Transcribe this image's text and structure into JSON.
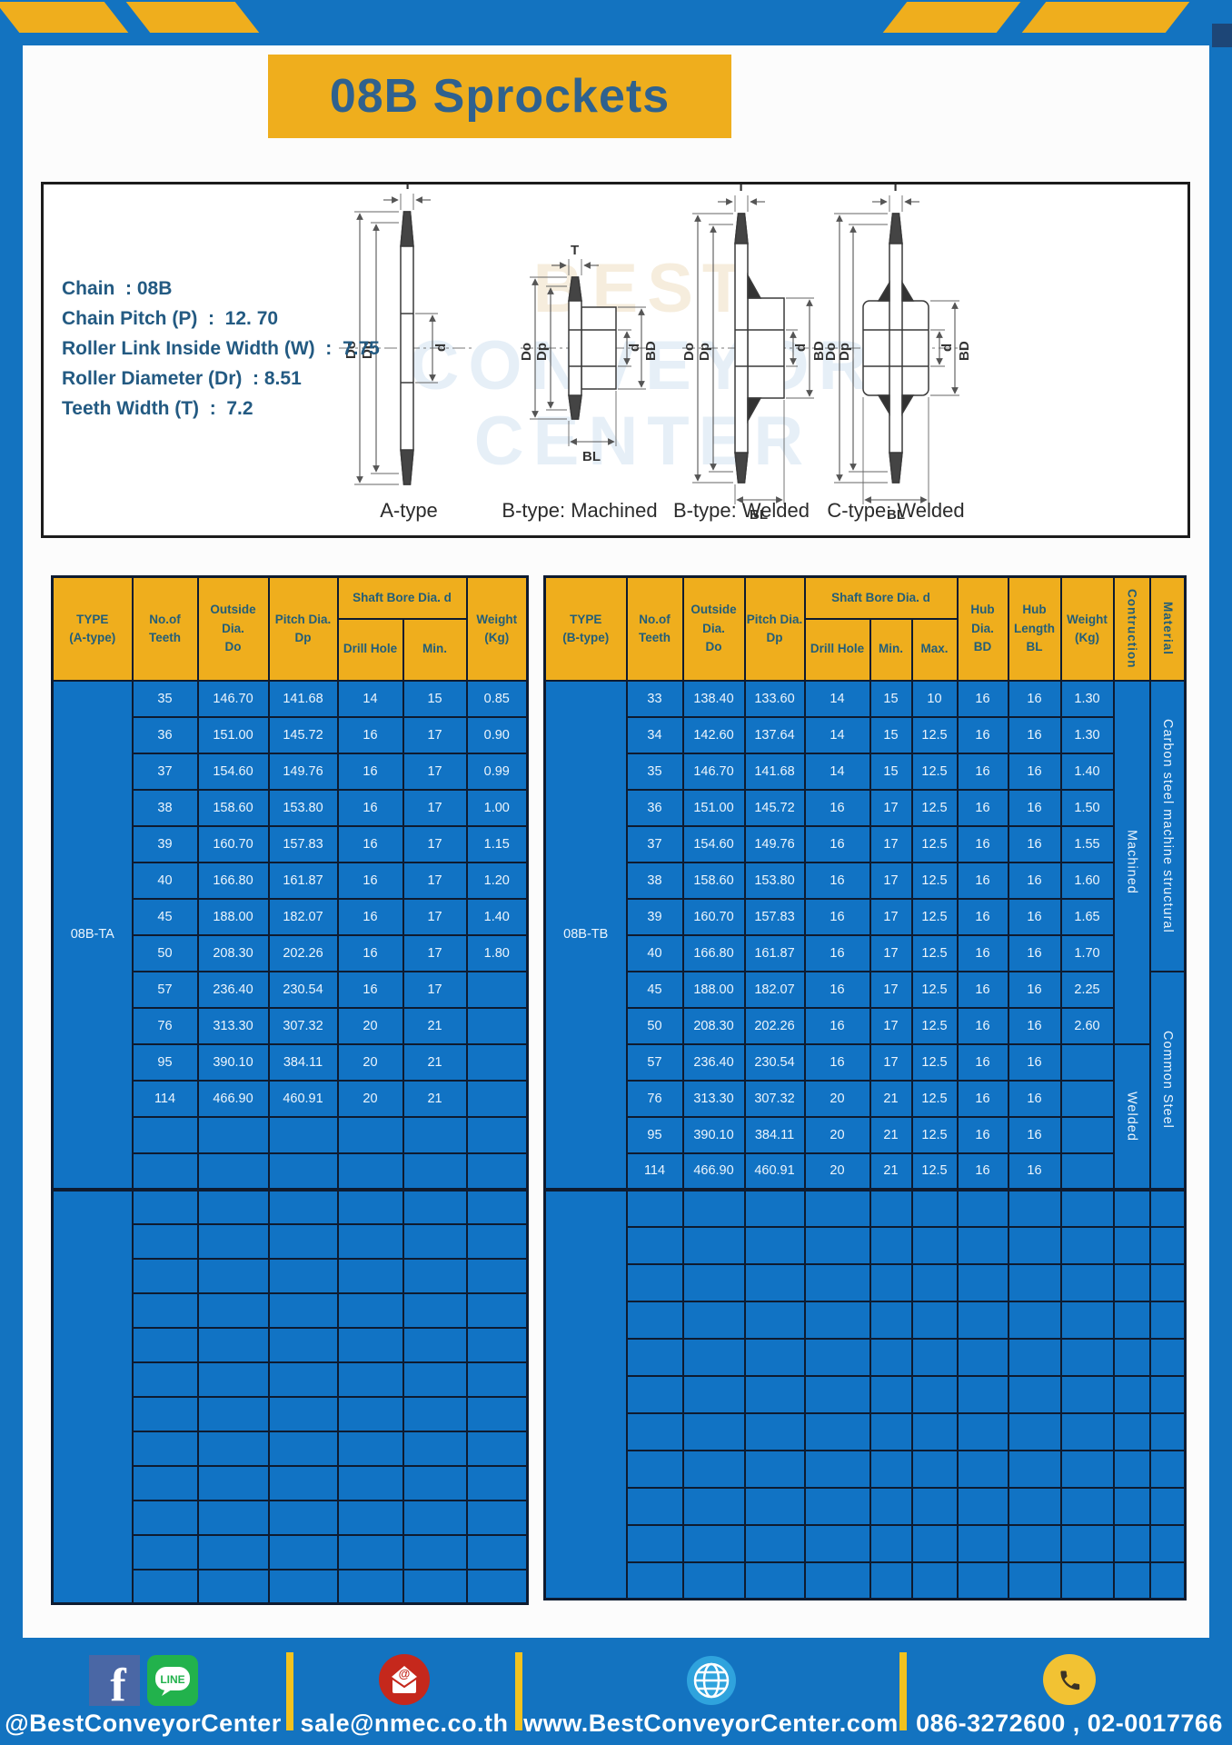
{
  "page": {
    "title": "08B Sprockets"
  },
  "specs": {
    "lines": [
      "Chain  : 08B",
      "Chain Pitch (P)  :  12. 70",
      "Roller Link Inside Width (W)  :  7.75",
      "Roller Diameter (Dr)  : 8.51",
      "Teeth Width (T)  :  7.2"
    ]
  },
  "diagram": {
    "watermark_lines": [
      "BEST",
      "CONVEYOR",
      "CENTER"
    ],
    "types": [
      "A-type",
      "B-type: Machined",
      "B-type: Welded",
      "C-type: Welded"
    ],
    "dims": {
      "T": "T",
      "Do": "Do",
      "Dp": "Dp",
      "d": "d",
      "BD": "BD",
      "BL": "BL"
    }
  },
  "table_a": {
    "type_label": "08B-TA",
    "headers": {
      "type": "TYPE\n(A-type)",
      "teeth": "No.of\nTeeth",
      "outside": "Outside\nDia.\nDo",
      "pitch": "Pitch Dia.\nDp",
      "shaft_bore": "Shaft Bore Dia. d",
      "drill_hole": "Drill Hole",
      "min": "Min.",
      "weight": "Weight\n(Kg)"
    },
    "rows": [
      [
        "35",
        "146.70",
        "141.68",
        "14",
        "15",
        "0.85"
      ],
      [
        "36",
        "151.00",
        "145.72",
        "16",
        "17",
        "0.90"
      ],
      [
        "37",
        "154.60",
        "149.76",
        "16",
        "17",
        "0.99"
      ],
      [
        "38",
        "158.60",
        "153.80",
        "16",
        "17",
        "1.00"
      ],
      [
        "39",
        "160.70",
        "157.83",
        "16",
        "17",
        "1.15"
      ],
      [
        "40",
        "166.80",
        "161.87",
        "16",
        "17",
        "1.20"
      ],
      [
        "45",
        "188.00",
        "182.07",
        "16",
        "17",
        "1.40"
      ],
      [
        "50",
        "208.30",
        "202.26",
        "16",
        "17",
        "1.80"
      ],
      [
        "57",
        "236.40",
        "230.54",
        "16",
        "17",
        ""
      ],
      [
        "76",
        "313.30",
        "307.32",
        "20",
        "21",
        ""
      ],
      [
        "95",
        "390.10",
        "384.11",
        "20",
        "21",
        ""
      ],
      [
        "114",
        "466.90",
        "460.91",
        "20",
        "21",
        ""
      ]
    ],
    "extra_blank_rows_in_section": 2,
    "blank_section_rows": 12
  },
  "table_b": {
    "type_label": "08B-TB",
    "headers": {
      "type": "TYPE\n(B-type)",
      "teeth": "No.of\nTeeth",
      "outside": "Outside\nDia.\nDo",
      "pitch": "Pitch Dia.\nDp",
      "shaft_bore": "Shaft Bore Dia. d",
      "drill_hole": "Drill Hole",
      "min": "Min.",
      "max": "Max.",
      "hub_dia": "Hub Dia.\nBD",
      "hub_length": "Hub\nLength\nBL",
      "weight": "Weight\n(Kg)",
      "construction": "Contruction",
      "material": "Material"
    },
    "rows": [
      [
        "33",
        "138.40",
        "133.60",
        "14",
        "15",
        "10",
        "16",
        "16",
        "1.30"
      ],
      [
        "34",
        "142.60",
        "137.64",
        "14",
        "15",
        "12.5",
        "16",
        "16",
        "1.30"
      ],
      [
        "35",
        "146.70",
        "141.68",
        "14",
        "15",
        "12.5",
        "16",
        "16",
        "1.40"
      ],
      [
        "36",
        "151.00",
        "145.72",
        "16",
        "17",
        "12.5",
        "16",
        "16",
        "1.50"
      ],
      [
        "37",
        "154.60",
        "149.76",
        "16",
        "17",
        "12.5",
        "16",
        "16",
        "1.55"
      ],
      [
        "38",
        "158.60",
        "153.80",
        "16",
        "17",
        "12.5",
        "16",
        "16",
        "1.60"
      ],
      [
        "39",
        "160.70",
        "157.83",
        "16",
        "17",
        "12.5",
        "16",
        "16",
        "1.65"
      ],
      [
        "40",
        "166.80",
        "161.87",
        "16",
        "17",
        "12.5",
        "16",
        "16",
        "1.70"
      ],
      [
        "45",
        "188.00",
        "182.07",
        "16",
        "17",
        "12.5",
        "16",
        "16",
        "2.25"
      ],
      [
        "50",
        "208.30",
        "202.26",
        "16",
        "17",
        "12.5",
        "16",
        "16",
        "2.60"
      ],
      [
        "57",
        "236.40",
        "230.54",
        "16",
        "17",
        "12.5",
        "16",
        "16",
        ""
      ],
      [
        "76",
        "313.30",
        "307.32",
        "20",
        "21",
        "12.5",
        "16",
        "16",
        ""
      ],
      [
        "95",
        "390.10",
        "384.11",
        "20",
        "21",
        "12.5",
        "16",
        "16",
        ""
      ],
      [
        "114",
        "466.90",
        "460.91",
        "20",
        "21",
        "12.5",
        "16",
        "16",
        ""
      ]
    ],
    "construction_groups": [
      {
        "label": "Machined",
        "rows": 10
      },
      {
        "label": "Welded",
        "rows": 4
      }
    ],
    "material_groups": [
      {
        "label": "Carbon steel  machine structural",
        "rows": 8
      },
      {
        "label": "Common  Steel",
        "rows": 6
      }
    ],
    "blank_section_rows": 11
  },
  "footer": {
    "social_handle": "@BestConveyorCenter",
    "line_label": "LINE",
    "email": "sale@nmec.co.th",
    "website": "www.BestConveyorCenter.com",
    "phones": "086-3272600 , 02-0017766"
  },
  "colors": {
    "frame_blue": "#1373c0",
    "accent_yellow": "#efae1d",
    "cell_blue": "#1173c4",
    "table_border": "#0e1b30",
    "header_text": "#235e78",
    "title_text": "#2f618e",
    "mail_red": "#c5281c",
    "line_green": "#22b24c",
    "facebook_blue": "#4a67a5",
    "globe_blue": "#2fa3dd",
    "phone_yellow": "#f2c233"
  }
}
